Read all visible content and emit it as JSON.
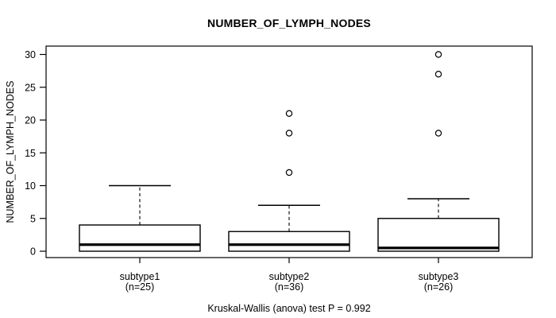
{
  "figure": {
    "title": "NUMBER_OF_LYMPH_NODES",
    "y_axis_label": "NUMBER_OF_LYMPH_NODES",
    "caption": "Kruskal-Wallis (anova) test P = 0.992",
    "background_color": "#ffffff",
    "stroke_color": "#000000"
  },
  "chart_data": {
    "type": "boxplot",
    "title": "NUMBER_OF_LYMPH_NODES",
    "xlabel": "",
    "ylabel": "NUMBER_OF_LYMPH_NODES",
    "ylim": [
      0,
      30
    ],
    "yticks": [
      0,
      5,
      10,
      15,
      20,
      25,
      30
    ],
    "grid": false,
    "legend": "none",
    "annotation": "Kruskal-Wallis (anova) test P = 0.992",
    "categories": [
      "subtype1",
      "subtype2",
      "subtype3"
    ],
    "groups": [
      {
        "label": "subtype1",
        "sublabel": "(n=25)",
        "n": 25,
        "whisker_low": 0,
        "q1": 0,
        "median": 1,
        "q3": 4,
        "whisker_high": 10,
        "outliers": []
      },
      {
        "label": "subtype2",
        "sublabel": "(n=36)",
        "n": 36,
        "whisker_low": 0,
        "q1": 0,
        "median": 1,
        "q3": 3,
        "whisker_high": 7,
        "outliers": [
          12,
          18,
          21
        ]
      },
      {
        "label": "subtype3",
        "sublabel": "(n=26)",
        "n": 26,
        "whisker_low": 0,
        "q1": 0,
        "median": 0.5,
        "q3": 5,
        "whisker_high": 8,
        "outliers": [
          18,
          27,
          30
        ]
      }
    ]
  }
}
